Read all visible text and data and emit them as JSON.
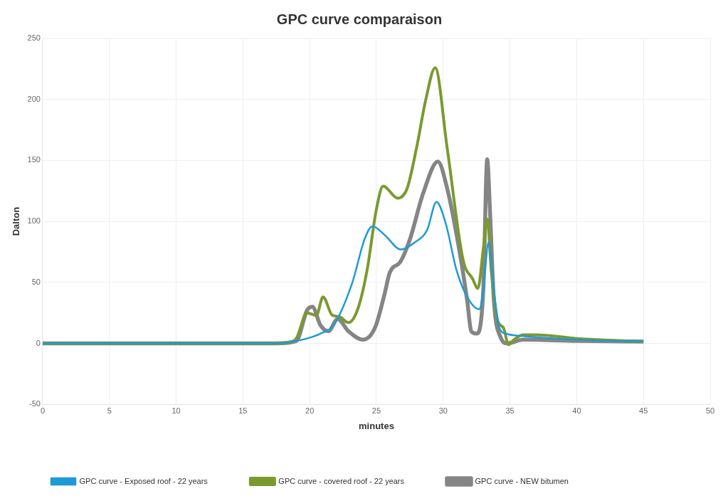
{
  "chart_data": {
    "type": "line",
    "title": "GPC curve comparaison",
    "xlabel": "minutes",
    "ylabel": "Dalton",
    "xlim": [
      0,
      50
    ],
    "xticks": [
      0,
      5,
      10,
      15,
      20,
      25,
      30,
      35,
      40,
      45,
      50
    ],
    "ylim": [
      -50,
      250
    ],
    "yticks": [
      -50,
      0,
      50,
      100,
      150,
      200,
      250
    ],
    "grid": true,
    "legend": "bottom",
    "marker": "none",
    "line_style": "solid",
    "series": [
      {
        "name": "GPC curve - Exposed roof - 22 years",
        "color": "#1e9ad6",
        "x": [
          0,
          17,
          18,
          19,
          19.8,
          20.8,
          21.8,
          23.2,
          24.1,
          24.7,
          25.7,
          26.8,
          27.9,
          28.8,
          29.5,
          30.2,
          31,
          31.8,
          32.7,
          33,
          33.4,
          33.8,
          34.2,
          34.7,
          36,
          40,
          45
        ],
        "values": [
          0,
          0,
          0.5,
          2,
          4,
          8,
          15,
          50,
          85,
          96,
          88,
          77,
          83,
          93,
          116,
          98,
          60,
          38,
          28,
          43,
          83,
          43,
          13,
          8,
          6,
          3,
          1.5
        ]
      },
      {
        "name": "GPC curve - covered roof - 22 years",
        "color": "#7a9a2e",
        "x": [
          0,
          17.5,
          18.5,
          19,
          19.8,
          20.5,
          21,
          21.7,
          22.2,
          22.9,
          23.6,
          24.3,
          25,
          25.5,
          26.6,
          27.3,
          28,
          28.7,
          29.4,
          30.3,
          31.5,
          32.2,
          32.6,
          33,
          33.3,
          33.6,
          34.1,
          34.5,
          34.9,
          35.3,
          36,
          37,
          40,
          45
        ],
        "values": [
          0,
          0,
          1,
          4,
          25,
          23,
          38,
          23,
          22,
          17,
          28,
          60,
          110,
          129,
          119,
          127,
          160,
          200,
          226,
          160,
          68,
          53,
          45,
          77,
          102,
          60,
          18,
          13,
          -1,
          3,
          7,
          7,
          4,
          1.5
        ]
      },
      {
        "name": "GPC curve - NEW bitumen",
        "color": "#858585",
        "x": [
          0,
          17.5,
          19,
          19.8,
          20.2,
          20.8,
          21.4,
          22.1,
          22.9,
          24,
          24.9,
          25.6,
          26,
          26.8,
          27.5,
          28.5,
          29.6,
          30.3,
          31.2,
          31.8,
          32.1,
          32.5,
          33,
          33.3,
          33.5,
          33.8,
          34.3,
          34.8,
          36,
          40,
          45
        ],
        "values": [
          0,
          0,
          2,
          27,
          30,
          15,
          10,
          20,
          10,
          3,
          13,
          40,
          58,
          67,
          85,
          123,
          149,
          127,
          77,
          35,
          10,
          8,
          43,
          151,
          110,
          35,
          5,
          0,
          3,
          2,
          1.5
        ]
      }
    ]
  }
}
